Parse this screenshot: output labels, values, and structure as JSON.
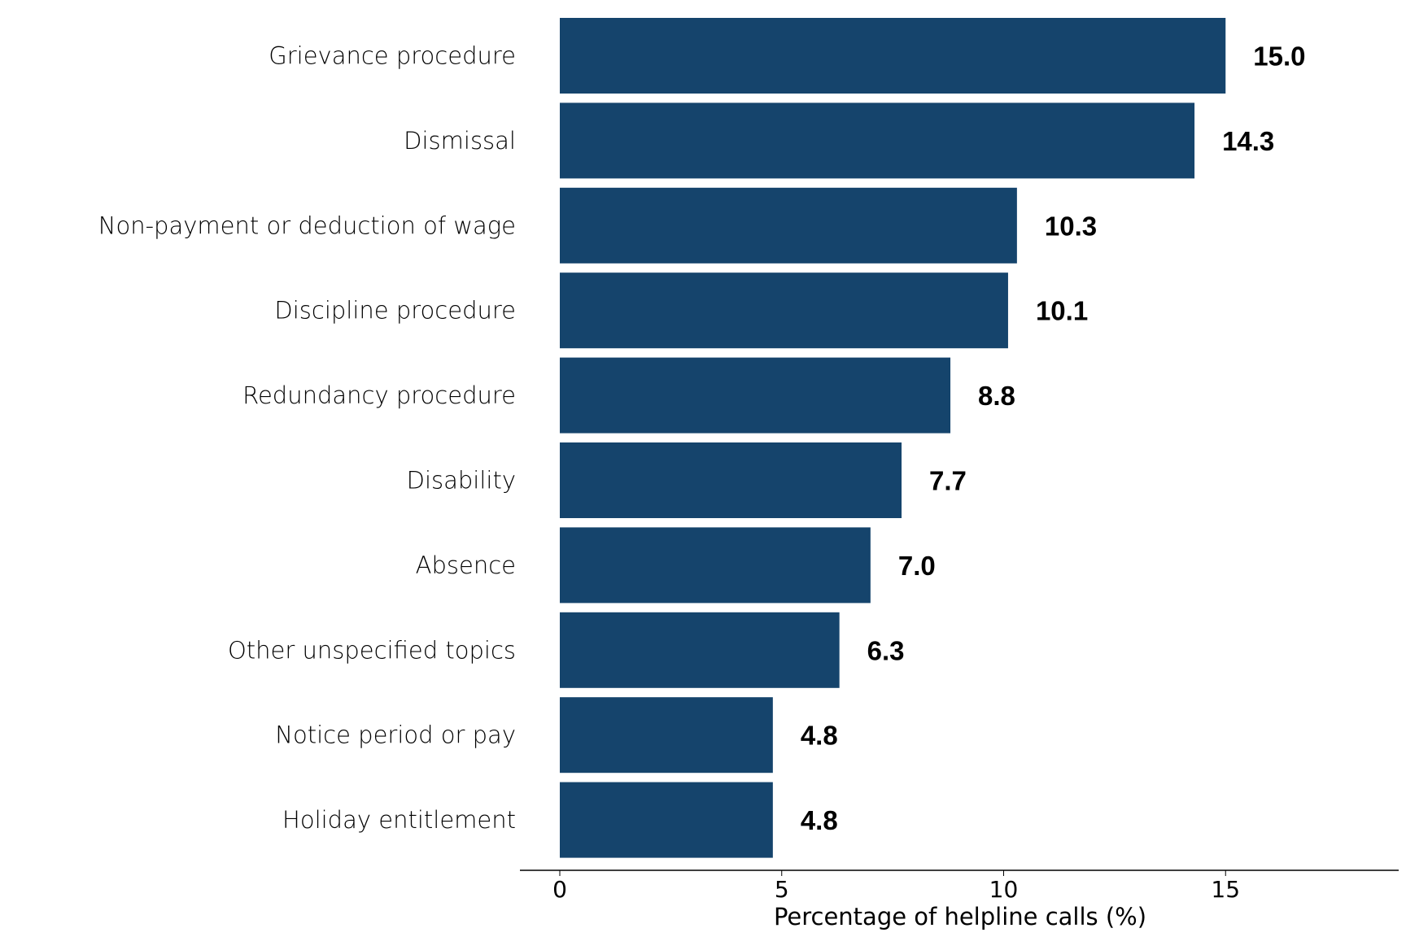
{
  "chart_data": {
    "type": "bar",
    "orientation": "horizontal",
    "categories": [
      "Grievance procedure",
      "Dismissal",
      "Non-payment or deduction of wage",
      "Discipline procedure",
      "Redundancy procedure",
      "Disability",
      "Absence",
      "Other unspecified topics",
      "Notice period or pay",
      "Holiday entitlement"
    ],
    "values": [
      15.0,
      14.3,
      10.3,
      10.1,
      8.8,
      7.7,
      7.0,
      6.3,
      4.8,
      4.8
    ],
    "data_labels": [
      "15.0",
      "14.3",
      "10.3",
      "10.1",
      "8.8",
      "7.7",
      "7.0",
      "6.3",
      "4.8",
      "4.8"
    ],
    "title": "",
    "xlabel": "Percentage of helpline calls (%)",
    "ylabel": "",
    "xlim": [
      -0.9,
      18.9
    ],
    "xticks": [
      0,
      5,
      10,
      15
    ],
    "xtick_labels": [
      "0",
      "5",
      "10",
      "15"
    ],
    "grid": false,
    "bar_color": "#15446c"
  }
}
